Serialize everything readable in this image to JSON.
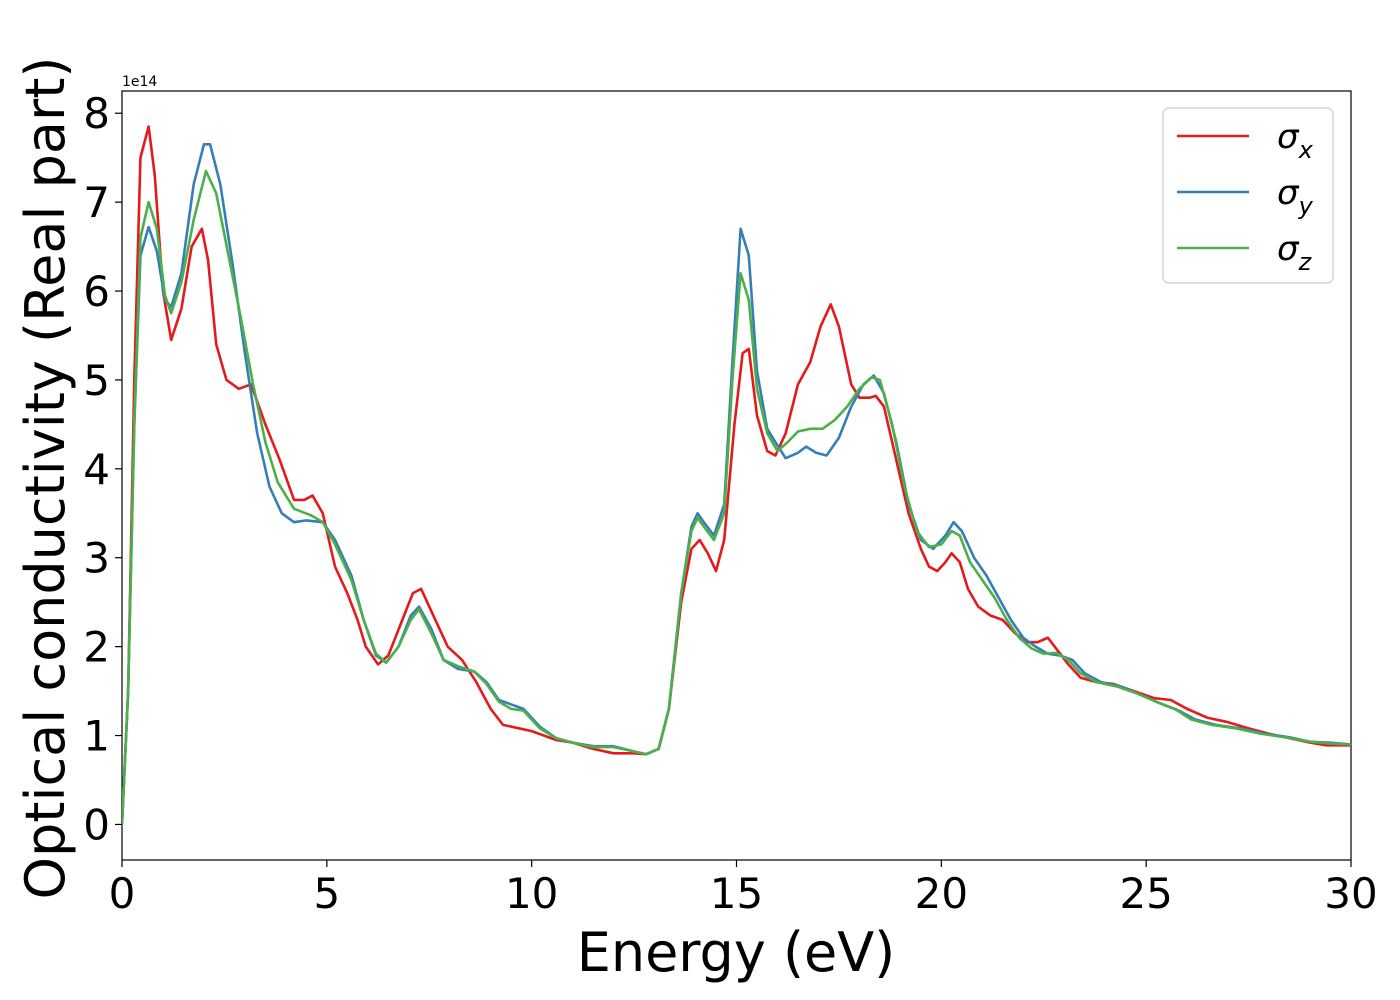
{
  "chart_data": {
    "type": "line",
    "title": "",
    "xlabel": "Energy (eV)",
    "ylabel": "Optical conductivity (Real part)",
    "y_offset_text": "1e14",
    "xlim": [
      0,
      30
    ],
    "ylim": [
      -0.4,
      8.25
    ],
    "x_ticks": [
      0,
      5,
      10,
      15,
      20,
      25,
      30
    ],
    "x_tick_labels": [
      "0",
      "5",
      "10",
      "15",
      "20",
      "25",
      "30"
    ],
    "y_ticks": [
      0,
      1,
      2,
      3,
      4,
      5,
      6,
      7,
      8
    ],
    "y_tick_labels": [
      "0",
      "1",
      "2",
      "3",
      "4",
      "5",
      "6",
      "7",
      "8"
    ],
    "grid": false,
    "legend_position": "top-right",
    "y_unit_multiplier": 100000000000000.0,
    "series": [
      {
        "name": "σ",
        "name_subscript": "x",
        "color": "#e41a1c",
        "points": [
          [
            0,
            0
          ],
          [
            0.15,
            1.5
          ],
          [
            0.3,
            5
          ],
          [
            0.45,
            7.5
          ],
          [
            0.65,
            7.85
          ],
          [
            0.8,
            7.3
          ],
          [
            1.0,
            6.0
          ],
          [
            1.2,
            5.45
          ],
          [
            1.45,
            5.8
          ],
          [
            1.7,
            6.5
          ],
          [
            1.95,
            6.7
          ],
          [
            2.1,
            6.35
          ],
          [
            2.3,
            5.4
          ],
          [
            2.55,
            5.0
          ],
          [
            2.85,
            4.9
          ],
          [
            3.15,
            4.95
          ],
          [
            3.5,
            4.5
          ],
          [
            3.85,
            4.1
          ],
          [
            4.2,
            3.65
          ],
          [
            4.45,
            3.65
          ],
          [
            4.65,
            3.7
          ],
          [
            4.9,
            3.5
          ],
          [
            5.2,
            2.9
          ],
          [
            5.5,
            2.6
          ],
          [
            5.75,
            2.3
          ],
          [
            5.95,
            2.0
          ],
          [
            6.25,
            1.8
          ],
          [
            6.5,
            1.9
          ],
          [
            6.8,
            2.25
          ],
          [
            7.1,
            2.6
          ],
          [
            7.3,
            2.65
          ],
          [
            7.6,
            2.35
          ],
          [
            7.95,
            2.0
          ],
          [
            8.3,
            1.85
          ],
          [
            8.65,
            1.6
          ],
          [
            9.0,
            1.3
          ],
          [
            9.3,
            1.12
          ],
          [
            9.7,
            1.08
          ],
          [
            10.0,
            1.05
          ],
          [
            10.6,
            0.95
          ],
          [
            11.0,
            0.92
          ],
          [
            11.5,
            0.85
          ],
          [
            12.0,
            0.8
          ],
          [
            12.5,
            0.8
          ],
          [
            12.8,
            0.79
          ],
          [
            13.1,
            0.85
          ],
          [
            13.35,
            1.3
          ],
          [
            13.65,
            2.5
          ],
          [
            13.9,
            3.1
          ],
          [
            14.1,
            3.2
          ],
          [
            14.3,
            3.05
          ],
          [
            14.5,
            2.85
          ],
          [
            14.7,
            3.2
          ],
          [
            14.95,
            4.5
          ],
          [
            15.15,
            5.3
          ],
          [
            15.3,
            5.35
          ],
          [
            15.5,
            4.6
          ],
          [
            15.75,
            4.2
          ],
          [
            15.95,
            4.15
          ],
          [
            16.2,
            4.4
          ],
          [
            16.5,
            4.95
          ],
          [
            16.8,
            5.2
          ],
          [
            17.05,
            5.6
          ],
          [
            17.3,
            5.85
          ],
          [
            17.5,
            5.6
          ],
          [
            17.8,
            4.95
          ],
          [
            18.0,
            4.8
          ],
          [
            18.25,
            4.8
          ],
          [
            18.4,
            4.82
          ],
          [
            18.6,
            4.7
          ],
          [
            18.9,
            4.1
          ],
          [
            19.2,
            3.5
          ],
          [
            19.5,
            3.1
          ],
          [
            19.7,
            2.9
          ],
          [
            19.9,
            2.85
          ],
          [
            20.1,
            2.95
          ],
          [
            20.25,
            3.05
          ],
          [
            20.45,
            2.95
          ],
          [
            20.65,
            2.65
          ],
          [
            20.9,
            2.45
          ],
          [
            21.2,
            2.35
          ],
          [
            21.5,
            2.3
          ],
          [
            21.8,
            2.15
          ],
          [
            22.1,
            2.05
          ],
          [
            22.35,
            2.05
          ],
          [
            22.6,
            2.1
          ],
          [
            22.85,
            1.95
          ],
          [
            23.1,
            1.8
          ],
          [
            23.4,
            1.65
          ],
          [
            23.8,
            1.6
          ],
          [
            24.2,
            1.58
          ],
          [
            24.7,
            1.5
          ],
          [
            25.2,
            1.42
          ],
          [
            25.6,
            1.4
          ],
          [
            26.0,
            1.3
          ],
          [
            26.5,
            1.2
          ],
          [
            27.0,
            1.15
          ],
          [
            27.5,
            1.08
          ],
          [
            28.0,
            1.02
          ],
          [
            28.5,
            0.97
          ],
          [
            29.0,
            0.92
          ],
          [
            29.4,
            0.89
          ],
          [
            30.0,
            0.89
          ]
        ]
      },
      {
        "name": "σ",
        "name_subscript": "y",
        "color": "#377eb8",
        "points": [
          [
            0,
            0
          ],
          [
            0.15,
            1.5
          ],
          [
            0.3,
            4.5
          ],
          [
            0.45,
            6.4
          ],
          [
            0.65,
            6.72
          ],
          [
            0.85,
            6.45
          ],
          [
            1.05,
            5.9
          ],
          [
            1.2,
            5.82
          ],
          [
            1.45,
            6.2
          ],
          [
            1.75,
            7.2
          ],
          [
            2.0,
            7.65
          ],
          [
            2.15,
            7.65
          ],
          [
            2.4,
            7.2
          ],
          [
            2.7,
            6.3
          ],
          [
            3.0,
            5.3
          ],
          [
            3.3,
            4.4
          ],
          [
            3.6,
            3.8
          ],
          [
            3.9,
            3.5
          ],
          [
            4.2,
            3.4
          ],
          [
            4.5,
            3.42
          ],
          [
            4.9,
            3.4
          ],
          [
            5.2,
            3.2
          ],
          [
            5.6,
            2.8
          ],
          [
            5.9,
            2.3
          ],
          [
            6.2,
            1.9
          ],
          [
            6.45,
            1.82
          ],
          [
            6.75,
            2.0
          ],
          [
            7.05,
            2.35
          ],
          [
            7.25,
            2.45
          ],
          [
            7.55,
            2.2
          ],
          [
            7.85,
            1.85
          ],
          [
            8.2,
            1.75
          ],
          [
            8.6,
            1.72
          ],
          [
            8.9,
            1.6
          ],
          [
            9.2,
            1.4
          ],
          [
            9.5,
            1.35
          ],
          [
            9.8,
            1.3
          ],
          [
            10.2,
            1.1
          ],
          [
            10.6,
            0.97
          ],
          [
            11.0,
            0.92
          ],
          [
            11.5,
            0.88
          ],
          [
            12.0,
            0.88
          ],
          [
            12.5,
            0.82
          ],
          [
            12.8,
            0.79
          ],
          [
            13.1,
            0.85
          ],
          [
            13.35,
            1.3
          ],
          [
            13.65,
            2.6
          ],
          [
            13.9,
            3.35
          ],
          [
            14.05,
            3.5
          ],
          [
            14.2,
            3.4
          ],
          [
            14.45,
            3.25
          ],
          [
            14.7,
            3.6
          ],
          [
            14.9,
            5.2
          ],
          [
            15.1,
            6.7
          ],
          [
            15.3,
            6.4
          ],
          [
            15.5,
            5.1
          ],
          [
            15.75,
            4.45
          ],
          [
            15.95,
            4.3
          ],
          [
            16.2,
            4.12
          ],
          [
            16.5,
            4.18
          ],
          [
            16.7,
            4.25
          ],
          [
            16.95,
            4.18
          ],
          [
            17.2,
            4.15
          ],
          [
            17.5,
            4.35
          ],
          [
            17.8,
            4.7
          ],
          [
            18.1,
            4.95
          ],
          [
            18.35,
            5.05
          ],
          [
            18.6,
            4.85
          ],
          [
            18.9,
            4.3
          ],
          [
            19.2,
            3.6
          ],
          [
            19.5,
            3.2
          ],
          [
            19.8,
            3.1
          ],
          [
            20.1,
            3.25
          ],
          [
            20.3,
            3.4
          ],
          [
            20.5,
            3.3
          ],
          [
            20.8,
            3.0
          ],
          [
            21.1,
            2.8
          ],
          [
            21.4,
            2.55
          ],
          [
            21.7,
            2.3
          ],
          [
            22.0,
            2.1
          ],
          [
            22.3,
            2.0
          ],
          [
            22.6,
            1.92
          ],
          [
            22.9,
            1.9
          ],
          [
            23.2,
            1.85
          ],
          [
            23.5,
            1.7
          ],
          [
            23.9,
            1.6
          ],
          [
            24.4,
            1.55
          ],
          [
            24.9,
            1.45
          ],
          [
            25.4,
            1.35
          ],
          [
            25.8,
            1.28
          ],
          [
            26.2,
            1.18
          ],
          [
            26.7,
            1.12
          ],
          [
            27.3,
            1.08
          ],
          [
            27.9,
            1.02
          ],
          [
            28.5,
            0.98
          ],
          [
            29.0,
            0.93
          ],
          [
            29.5,
            0.92
          ],
          [
            30.0,
            0.9
          ]
        ]
      },
      {
        "name": "σ",
        "name_subscript": "z",
        "color": "#4daf4a",
        "points": [
          [
            0,
            0
          ],
          [
            0.15,
            1.5
          ],
          [
            0.3,
            4.5
          ],
          [
            0.45,
            6.6
          ],
          [
            0.65,
            7.0
          ],
          [
            0.85,
            6.7
          ],
          [
            1.05,
            5.95
          ],
          [
            1.2,
            5.75
          ],
          [
            1.45,
            6.1
          ],
          [
            1.75,
            6.8
          ],
          [
            2.05,
            7.35
          ],
          [
            2.3,
            7.1
          ],
          [
            2.6,
            6.4
          ],
          [
            2.9,
            5.7
          ],
          [
            3.2,
            4.95
          ],
          [
            3.5,
            4.3
          ],
          [
            3.8,
            3.85
          ],
          [
            4.2,
            3.55
          ],
          [
            4.6,
            3.48
          ],
          [
            4.9,
            3.4
          ],
          [
            5.2,
            3.15
          ],
          [
            5.6,
            2.75
          ],
          [
            5.9,
            2.3
          ],
          [
            6.2,
            1.92
          ],
          [
            6.45,
            1.82
          ],
          [
            6.75,
            2.0
          ],
          [
            7.05,
            2.3
          ],
          [
            7.25,
            2.42
          ],
          [
            7.55,
            2.15
          ],
          [
            7.85,
            1.85
          ],
          [
            8.2,
            1.78
          ],
          [
            8.6,
            1.72
          ],
          [
            8.9,
            1.58
          ],
          [
            9.2,
            1.38
          ],
          [
            9.5,
            1.3
          ],
          [
            9.8,
            1.28
          ],
          [
            10.2,
            1.08
          ],
          [
            10.6,
            0.97
          ],
          [
            11.0,
            0.92
          ],
          [
            11.5,
            0.87
          ],
          [
            12.0,
            0.87
          ],
          [
            12.5,
            0.82
          ],
          [
            12.8,
            0.79
          ],
          [
            13.1,
            0.85
          ],
          [
            13.35,
            1.3
          ],
          [
            13.65,
            2.6
          ],
          [
            13.9,
            3.3
          ],
          [
            14.05,
            3.45
          ],
          [
            14.2,
            3.35
          ],
          [
            14.45,
            3.2
          ],
          [
            14.7,
            3.5
          ],
          [
            14.9,
            5.0
          ],
          [
            15.1,
            6.2
          ],
          [
            15.3,
            5.9
          ],
          [
            15.5,
            4.9
          ],
          [
            15.75,
            4.4
          ],
          [
            16.0,
            4.2
          ],
          [
            16.25,
            4.3
          ],
          [
            16.5,
            4.42
          ],
          [
            16.8,
            4.45
          ],
          [
            17.1,
            4.45
          ],
          [
            17.4,
            4.55
          ],
          [
            17.7,
            4.7
          ],
          [
            18.0,
            4.9
          ],
          [
            18.3,
            5.03
          ],
          [
            18.5,
            5.0
          ],
          [
            18.8,
            4.5
          ],
          [
            19.1,
            3.8
          ],
          [
            19.4,
            3.3
          ],
          [
            19.7,
            3.12
          ],
          [
            20.0,
            3.15
          ],
          [
            20.25,
            3.3
          ],
          [
            20.45,
            3.25
          ],
          [
            20.7,
            2.95
          ],
          [
            21.0,
            2.75
          ],
          [
            21.3,
            2.55
          ],
          [
            21.6,
            2.3
          ],
          [
            21.9,
            2.1
          ],
          [
            22.2,
            1.98
          ],
          [
            22.5,
            1.92
          ],
          [
            22.8,
            1.93
          ],
          [
            23.1,
            1.85
          ],
          [
            23.4,
            1.7
          ],
          [
            23.8,
            1.6
          ],
          [
            24.3,
            1.55
          ],
          [
            24.8,
            1.47
          ],
          [
            25.3,
            1.37
          ],
          [
            25.7,
            1.3
          ],
          [
            26.1,
            1.18
          ],
          [
            26.6,
            1.12
          ],
          [
            27.2,
            1.08
          ],
          [
            27.8,
            1.02
          ],
          [
            28.4,
            0.98
          ],
          [
            29.0,
            0.93
          ],
          [
            29.5,
            0.91
          ],
          [
            30.0,
            0.9
          ]
        ]
      }
    ]
  }
}
